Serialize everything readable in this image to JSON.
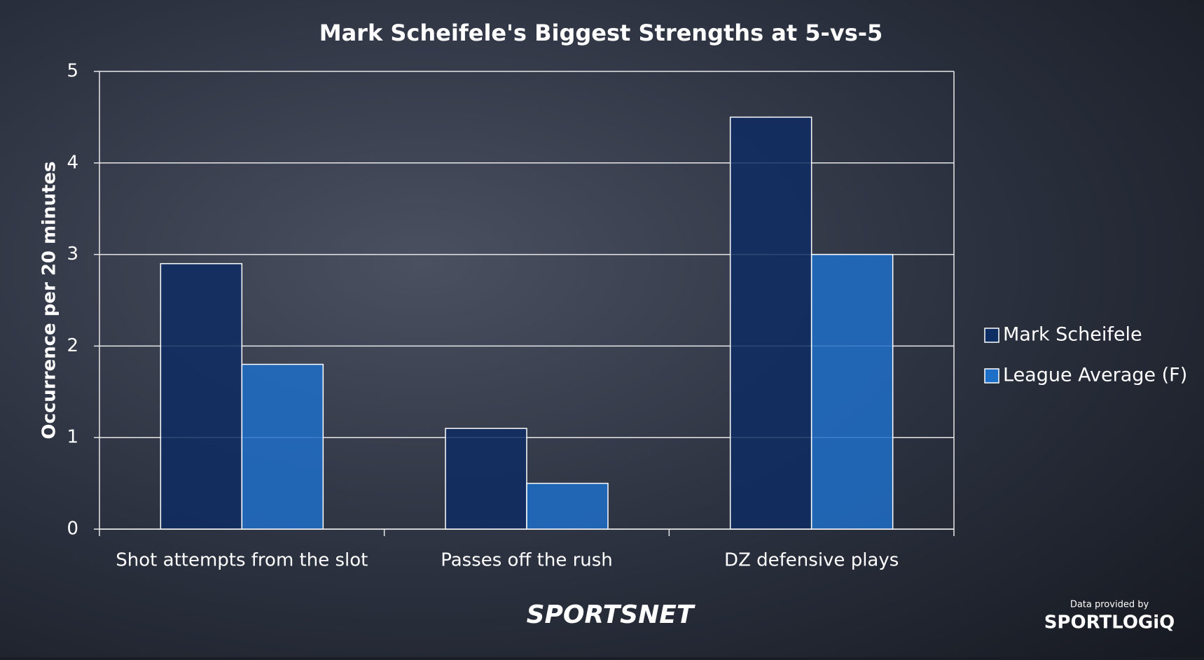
{
  "chart_data": {
    "type": "bar",
    "title": "Mark Scheifele's Biggest Strengths at 5-vs-5",
    "y_label": "Occurrence per 20 minutes",
    "categories": [
      "Shot attempts from the slot",
      "Passes off the rush",
      "DZ defensive plays"
    ],
    "series": [
      {
        "name": "Mark Scheifele",
        "color": "#0e2d63",
        "values": [
          2.9,
          1.1,
          4.5
        ]
      },
      {
        "name": "League Average (F)",
        "color": "#1e6fc8",
        "values": [
          1.8,
          0.5,
          3.0
        ]
      }
    ],
    "ylim": [
      0,
      5
    ],
    "yticks": [
      0,
      1,
      2,
      3,
      4,
      5
    ],
    "grid": true,
    "legend": "right"
  },
  "branding": {
    "logo": "SPORTSNET",
    "credit": "Data provided by",
    "provider": "SPORTLOGiQ"
  }
}
